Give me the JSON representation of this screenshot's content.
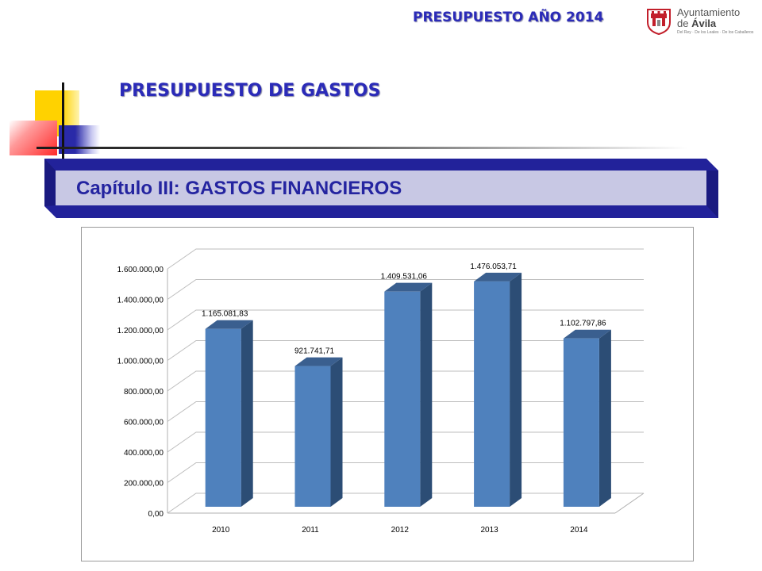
{
  "header": {
    "top_title": "PRESUPUESTO AÑO 2014",
    "section_title": "PRESUPUESTO DE GASTOS",
    "banner_title": "Capítulo III: GASTOS FINANCIEROS"
  },
  "logo": {
    "line1": "Ayuntamiento",
    "line2_prefix": "de ",
    "line2_name": "Ávila",
    "tagline": "Del Rey · De los Leales · De los Caballeros",
    "icon": "coat-of-arms-icon"
  },
  "colors": {
    "title_blue": "#2b2bb8",
    "banner_dark": "#22229a",
    "banner_light": "#c8c8e4",
    "bar_front": "#4f81bd",
    "bar_side": "#2c4d75",
    "bar_top": "#3a5f8f"
  },
  "chart_data": {
    "type": "bar",
    "categories": [
      "2010",
      "2011",
      "2012",
      "2013",
      "2014"
    ],
    "values": [
      1165081.83,
      921741.71,
      1409531.06,
      1476053.71,
      1102797.86
    ],
    "value_labels": [
      "1.165.081,83",
      "921.741,71",
      "1.409.531,06",
      "1.476.053,71",
      "1.102.797,86"
    ],
    "y_ticks": [
      0,
      200000,
      400000,
      600000,
      800000,
      1000000,
      1200000,
      1400000,
      1600000
    ],
    "y_tick_labels": [
      "0,00",
      "200.000,00",
      "400.000,00",
      "600.000,00",
      "800.000,00",
      "1.000.000,00",
      "1.200.000,00",
      "1.400.000,00",
      "1.600.000,00"
    ],
    "ylim": [
      0,
      1600000
    ],
    "title": "",
    "xlabel": "",
    "ylabel": "",
    "grid": true,
    "style": "3d"
  }
}
